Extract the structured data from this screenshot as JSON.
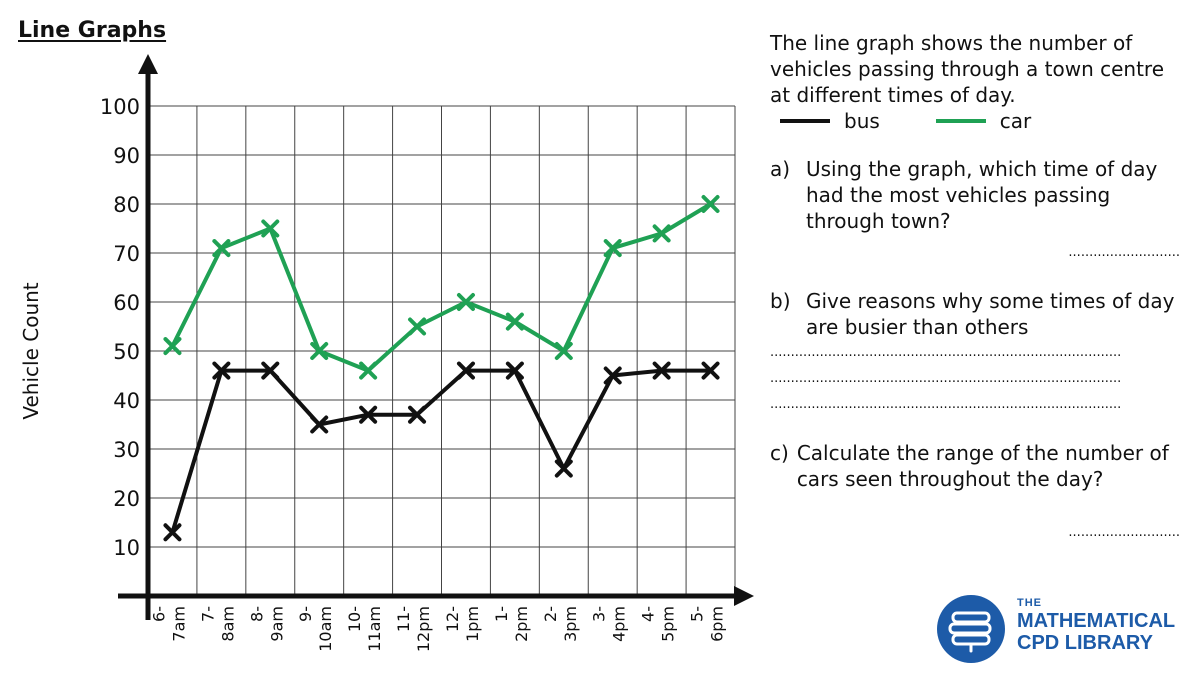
{
  "page_title": "Line Graphs",
  "chart_data": {
    "type": "line",
    "ylabel": "Vehicle Count",
    "xlabel": "",
    "ylim": [
      0,
      100
    ],
    "yticks": [
      10,
      20,
      30,
      40,
      50,
      60,
      70,
      80,
      90,
      100
    ],
    "grid": true,
    "categories": [
      [
        "6-",
        "7am"
      ],
      [
        "7-",
        "8am"
      ],
      [
        "8-",
        "9am"
      ],
      [
        "9-",
        "10am"
      ],
      [
        "10-",
        "11am"
      ],
      [
        "11-",
        "12pm"
      ],
      [
        "12-",
        "1pm"
      ],
      [
        "1-",
        "2pm"
      ],
      [
        "2-",
        "3pm"
      ],
      [
        "3-",
        "4pm"
      ],
      [
        "4-",
        "5pm"
      ],
      [
        "5-",
        "6pm"
      ]
    ],
    "series": [
      {
        "name": "bus",
        "color": "#111111",
        "values": [
          13,
          46,
          46,
          35,
          37,
          37,
          46,
          46,
          26,
          45,
          46,
          46
        ]
      },
      {
        "name": "car",
        "color": "#1fa154",
        "values": [
          51,
          71,
          75,
          50,
          46,
          55,
          60,
          56,
          50,
          71,
          74,
          80
        ]
      }
    ]
  },
  "panel": {
    "intro": "The line graph shows the number of vehicles passing through a town centre at different times of day.",
    "legend": [
      {
        "label": "bus",
        "color": "#111111"
      },
      {
        "label": "car",
        "color": "#1fa154"
      }
    ],
    "q_a_letter": "a)",
    "q_a_text": "Using the graph, which time of day had the most vehicles passing through town?",
    "q_b_letter": "b)",
    "q_b_text": "Give reasons why some times of day are busier than others",
    "q_c_letter": "c)",
    "q_c_text": "Calculate the range of the number of cars seen throughout the day?",
    "answer_dots_short": "...........................",
    "answer_dots_long": "....................................................................................."
  },
  "logo": {
    "the": "THE",
    "line1": "MATHEMATICAL",
    "line2": "CPD LIBRARY",
    "color": "#1d5ba8"
  }
}
